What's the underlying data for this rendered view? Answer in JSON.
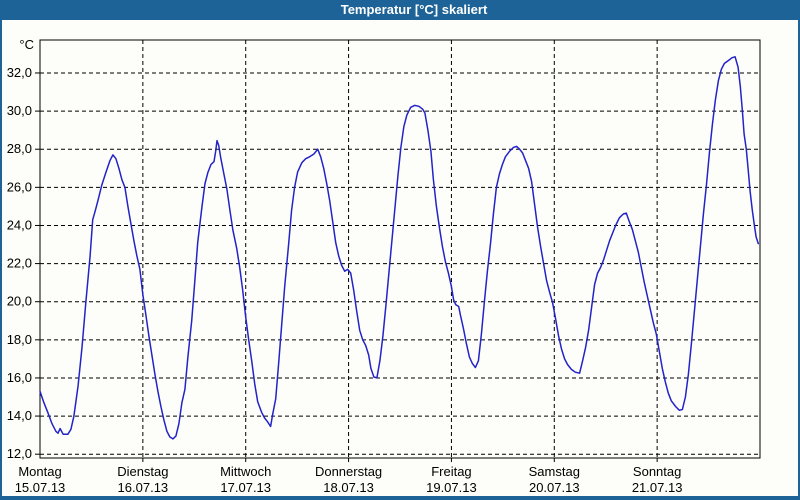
{
  "window": {
    "title": "Temperatur [°C] skaliert"
  },
  "chart_data": {
    "type": "line",
    "title": "Temperatur [°C] skaliert",
    "unit_label": "°C",
    "xlabel": "",
    "ylabel": "°C",
    "xlim_hours": [
      0,
      168
    ],
    "ylim": [
      11.8,
      33.73
    ],
    "grid": "dashed",
    "legend": "none",
    "colors": {
      "titlebar": "#1d6398",
      "window_border": "#1d6398",
      "background": "#fdfef9",
      "grid": "#000000",
      "line": "#2323c8",
      "label_text": "#000000",
      "title_text": "#ffffff"
    },
    "yticks": [
      {
        "value": 32,
        "label": "32,0"
      },
      {
        "value": 30,
        "label": "30,0"
      },
      {
        "value": 28,
        "label": "28,0"
      },
      {
        "value": 26,
        "label": "26,0"
      },
      {
        "value": 24,
        "label": "24,0"
      },
      {
        "value": 22,
        "label": "22,0"
      },
      {
        "value": 20,
        "label": "20,0"
      },
      {
        "value": 18,
        "label": "18,0"
      },
      {
        "value": 16,
        "label": "16,0"
      },
      {
        "value": 14,
        "label": "14,0"
      },
      {
        "value": 12,
        "label": "12,0"
      }
    ],
    "days": [
      {
        "name": "Montag",
        "date": "15.07.13",
        "hour": 0
      },
      {
        "name": "Dienstag",
        "date": "16.07.13",
        "hour": 24
      },
      {
        "name": "Mittwoch",
        "date": "17.07.13",
        "hour": 48
      },
      {
        "name": "Donnerstag",
        "date": "18.07.13",
        "hour": 72
      },
      {
        "name": "Freitag",
        "date": "19.07.13",
        "hour": 96
      },
      {
        "name": "Samstag",
        "date": "20.07.13",
        "hour": 120
      },
      {
        "name": "Sonntag",
        "date": "21.07.13",
        "hour": 144
      }
    ],
    "series": [
      {
        "name": "Temperatur",
        "points": [
          [
            0,
            15.3
          ],
          [
            0.9,
            14.7
          ],
          [
            1.9,
            14.15
          ],
          [
            2.8,
            13.6
          ],
          [
            3.7,
            13.2
          ],
          [
            4.2,
            13.1
          ],
          [
            4.7,
            13.35
          ],
          [
            5.4,
            13.05
          ],
          [
            6.5,
            13.05
          ],
          [
            7.2,
            13.3
          ],
          [
            7.9,
            14.0
          ],
          [
            8.9,
            15.6
          ],
          [
            9.8,
            17.6
          ],
          [
            10.7,
            20.0
          ],
          [
            11.7,
            22.4
          ],
          [
            12.3,
            24.3
          ],
          [
            12.8,
            24.7
          ],
          [
            13.5,
            25.3
          ],
          [
            14.4,
            26.1
          ],
          [
            15.4,
            26.8
          ],
          [
            16.3,
            27.4
          ],
          [
            17.0,
            27.7
          ],
          [
            17.7,
            27.5
          ],
          [
            18.4,
            27.0
          ],
          [
            19.1,
            26.4
          ],
          [
            19.8,
            26.0
          ],
          [
            20.5,
            25.0
          ],
          [
            21.2,
            24.1
          ],
          [
            21.9,
            23.2
          ],
          [
            22.6,
            22.4
          ],
          [
            23.3,
            21.7
          ],
          [
            24.0,
            20.35
          ],
          [
            24.7,
            19.3
          ],
          [
            25.4,
            18.2
          ],
          [
            26.1,
            17.2
          ],
          [
            26.8,
            16.2
          ],
          [
            27.5,
            15.3
          ],
          [
            28.2,
            14.5
          ],
          [
            28.9,
            13.8
          ],
          [
            29.6,
            13.2
          ],
          [
            30.3,
            12.9
          ],
          [
            31.0,
            12.8
          ],
          [
            31.7,
            12.95
          ],
          [
            32.4,
            13.6
          ],
          [
            33.1,
            14.7
          ],
          [
            33.8,
            15.4
          ],
          [
            34.5,
            17.1
          ],
          [
            35.4,
            19.0
          ],
          [
            36.1,
            21.0
          ],
          [
            36.8,
            23.1
          ],
          [
            37.8,
            25.0
          ],
          [
            38.5,
            26.2
          ],
          [
            39.2,
            26.8
          ],
          [
            39.9,
            27.2
          ],
          [
            40.6,
            27.35
          ],
          [
            41.0,
            27.9
          ],
          [
            41.3,
            28.45
          ],
          [
            41.7,
            28.2
          ],
          [
            42.2,
            27.5
          ],
          [
            42.9,
            26.7
          ],
          [
            43.6,
            25.9
          ],
          [
            44.3,
            24.8
          ],
          [
            45.0,
            23.75
          ],
          [
            45.9,
            22.8
          ],
          [
            46.6,
            21.8
          ],
          [
            47.3,
            20.6
          ],
          [
            48.0,
            19.2
          ],
          [
            48.7,
            18.0
          ],
          [
            49.4,
            16.9
          ],
          [
            50.1,
            15.7
          ],
          [
            50.8,
            14.75
          ],
          [
            51.7,
            14.2
          ],
          [
            52.4,
            13.9
          ],
          [
            53.1,
            13.7
          ],
          [
            53.8,
            13.45
          ],
          [
            54.3,
            14.1
          ],
          [
            55.0,
            14.9
          ],
          [
            55.7,
            16.8
          ],
          [
            56.4,
            18.8
          ],
          [
            57.1,
            20.8
          ],
          [
            58.0,
            23.0
          ],
          [
            58.7,
            24.8
          ],
          [
            59.4,
            26.0
          ],
          [
            60.1,
            26.8
          ],
          [
            61.1,
            27.3
          ],
          [
            62.0,
            27.5
          ],
          [
            62.9,
            27.6
          ],
          [
            63.9,
            27.75
          ],
          [
            64.8,
            28.0
          ],
          [
            65.5,
            27.6
          ],
          [
            66.2,
            27.0
          ],
          [
            66.9,
            26.2
          ],
          [
            67.6,
            25.3
          ],
          [
            68.3,
            24.2
          ],
          [
            69.0,
            23.1
          ],
          [
            69.7,
            22.4
          ],
          [
            70.4,
            21.9
          ],
          [
            71.1,
            21.6
          ],
          [
            71.8,
            21.7
          ],
          [
            72.5,
            21.5
          ],
          [
            73.2,
            20.6
          ],
          [
            73.9,
            19.5
          ],
          [
            74.6,
            18.5
          ],
          [
            75.3,
            18.0
          ],
          [
            76.0,
            17.7
          ],
          [
            76.7,
            17.2
          ],
          [
            77.2,
            16.5
          ],
          [
            77.9,
            16.05
          ],
          [
            78.6,
            16.0
          ],
          [
            79.3,
            16.9
          ],
          [
            80.0,
            18.2
          ],
          [
            80.7,
            19.8
          ],
          [
            81.4,
            21.5
          ],
          [
            82.1,
            23.2
          ],
          [
            82.8,
            24.9
          ],
          [
            83.5,
            26.6
          ],
          [
            84.2,
            28.1
          ],
          [
            84.9,
            29.2
          ],
          [
            85.6,
            29.8
          ],
          [
            86.5,
            30.2
          ],
          [
            87.4,
            30.3
          ],
          [
            88.4,
            30.25
          ],
          [
            89.3,
            30.1
          ],
          [
            89.8,
            29.9
          ],
          [
            90.5,
            29.0
          ],
          [
            91.2,
            27.9
          ],
          [
            91.8,
            26.4
          ],
          [
            92.5,
            25.0
          ],
          [
            93.2,
            23.9
          ],
          [
            93.9,
            22.9
          ],
          [
            94.6,
            22.1
          ],
          [
            95.3,
            21.5
          ],
          [
            96.0,
            20.8
          ],
          [
            96.5,
            20.1
          ],
          [
            97.0,
            19.85
          ],
          [
            97.7,
            19.75
          ],
          [
            98.1,
            19.3
          ],
          [
            98.8,
            18.6
          ],
          [
            99.5,
            17.8
          ],
          [
            100.2,
            17.1
          ],
          [
            100.9,
            16.75
          ],
          [
            101.6,
            16.55
          ],
          [
            102.3,
            16.9
          ],
          [
            103.0,
            18.3
          ],
          [
            103.7,
            20.0
          ],
          [
            104.4,
            21.6
          ],
          [
            105.1,
            23.0
          ],
          [
            105.8,
            24.6
          ],
          [
            106.5,
            26.0
          ],
          [
            107.2,
            26.7
          ],
          [
            107.9,
            27.2
          ],
          [
            108.6,
            27.6
          ],
          [
            109.6,
            27.9
          ],
          [
            110.5,
            28.1
          ],
          [
            111.2,
            28.15
          ],
          [
            111.9,
            28.0
          ],
          [
            112.6,
            27.8
          ],
          [
            113.3,
            27.4
          ],
          [
            114.0,
            27.0
          ],
          [
            114.7,
            26.3
          ],
          [
            115.4,
            25.1
          ],
          [
            116.1,
            23.9
          ],
          [
            116.8,
            22.9
          ],
          [
            117.5,
            22.0
          ],
          [
            118.2,
            21.1
          ],
          [
            118.9,
            20.5
          ],
          [
            119.6,
            19.95
          ],
          [
            120.3,
            19.1
          ],
          [
            121.0,
            18.2
          ],
          [
            121.7,
            17.5
          ],
          [
            122.4,
            17.0
          ],
          [
            123.1,
            16.7
          ],
          [
            124.0,
            16.45
          ],
          [
            124.9,
            16.3
          ],
          [
            125.9,
            16.25
          ],
          [
            126.6,
            16.9
          ],
          [
            127.3,
            17.6
          ],
          [
            128.0,
            18.5
          ],
          [
            128.7,
            19.7
          ],
          [
            129.4,
            20.9
          ],
          [
            130.1,
            21.5
          ],
          [
            130.8,
            21.8
          ],
          [
            131.5,
            22.2
          ],
          [
            132.2,
            22.7
          ],
          [
            132.9,
            23.2
          ],
          [
            133.6,
            23.6
          ],
          [
            134.3,
            24.0
          ],
          [
            135.2,
            24.4
          ],
          [
            136.1,
            24.6
          ],
          [
            136.8,
            24.65
          ],
          [
            137.5,
            24.2
          ],
          [
            138.2,
            23.8
          ],
          [
            138.9,
            23.2
          ],
          [
            139.6,
            22.6
          ],
          [
            140.3,
            21.8
          ],
          [
            141.0,
            21.0
          ],
          [
            141.7,
            20.3
          ],
          [
            142.4,
            19.6
          ],
          [
            143.1,
            18.9
          ],
          [
            143.8,
            18.3
          ],
          [
            144.5,
            17.4
          ],
          [
            145.2,
            16.5
          ],
          [
            145.9,
            15.8
          ],
          [
            146.6,
            15.2
          ],
          [
            147.3,
            14.8
          ],
          [
            148.3,
            14.5
          ],
          [
            149.2,
            14.3
          ],
          [
            149.9,
            14.35
          ],
          [
            150.6,
            15.0
          ],
          [
            151.3,
            16.2
          ],
          [
            152.0,
            17.8
          ],
          [
            152.7,
            19.5
          ],
          [
            153.4,
            21.2
          ],
          [
            154.1,
            22.9
          ],
          [
            154.8,
            24.6
          ],
          [
            155.5,
            26.1
          ],
          [
            156.2,
            27.8
          ],
          [
            156.9,
            29.3
          ],
          [
            157.6,
            30.6
          ],
          [
            158.3,
            31.6
          ],
          [
            159.0,
            32.2
          ],
          [
            159.7,
            32.5
          ],
          [
            160.6,
            32.65
          ],
          [
            161.5,
            32.8
          ],
          [
            162.2,
            32.85
          ],
          [
            162.9,
            32.3
          ],
          [
            163.4,
            31.3
          ],
          [
            163.9,
            30.0
          ],
          [
            164.3,
            28.8
          ],
          [
            164.8,
            28.0
          ],
          [
            165.3,
            26.8
          ],
          [
            165.7,
            25.8
          ],
          [
            166.2,
            24.8
          ],
          [
            166.7,
            24.0
          ],
          [
            167.1,
            23.4
          ],
          [
            167.6,
            23.05
          ]
        ]
      }
    ]
  }
}
